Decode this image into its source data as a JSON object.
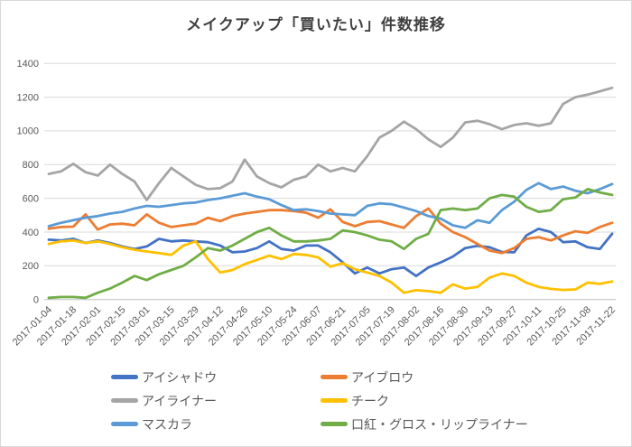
{
  "window": {
    "background": "#ffffff",
    "border_color": "#d9d9d9"
  },
  "chart_data": {
    "type": "line",
    "title": "メイクアップ「買いたい」件数推移",
    "title_color": "#404040",
    "axis_text_color": "#595959",
    "gridline_color": "#d9d9d9",
    "axis_line_color": "#bfbfbf",
    "grid": true,
    "legend_position": "bottom",
    "xlabel": "",
    "ylabel": "",
    "ylim": [
      0,
      1400
    ],
    "y_ticks": [
      0,
      200,
      400,
      600,
      800,
      1000,
      1200,
      1400
    ],
    "x": [
      "2017-01-04",
      "2017-01-11",
      "2017-01-18",
      "2017-01-25",
      "2017-02-01",
      "2017-02-08",
      "2017-02-15",
      "2017-02-22",
      "2017-03-01",
      "2017-03-08",
      "2017-03-15",
      "2017-03-22",
      "2017-03-29",
      "2017-04-05",
      "2017-04-12",
      "2017-04-19",
      "2017-04-26",
      "2017-05-03",
      "2017-05-10",
      "2017-05-17",
      "2017-05-24",
      "2017-05-31",
      "2017-06-07",
      "2017-06-14",
      "2017-06-21",
      "2017-06-28",
      "2017-07-05",
      "2017-07-12",
      "2017-07-19",
      "2017-07-26",
      "2017-08-02",
      "2017-08-09",
      "2017-08-16",
      "2017-08-23",
      "2017-08-30",
      "2017-09-06",
      "2017-09-13",
      "2017-09-20",
      "2017-09-27",
      "2017-10-04",
      "2017-10-11",
      "2017-10-18",
      "2017-10-25",
      "2017-11-01",
      "2017-11-08",
      "2017-11-15",
      "2017-11-22"
    ],
    "x_tick_labels": [
      "2017-01-04",
      "2017-01-18",
      "2017-02-01",
      "2017-02-15",
      "2017-03-01",
      "2017-03-15",
      "2017-03-29",
      "2017-04-12",
      "2017-04-26",
      "2017-05-10",
      "2017-05-24",
      "2017-06-07",
      "2017-06-21",
      "2017-07-05",
      "2017-07-19",
      "2017-08-02",
      "2017-08-16",
      "2017-08-30",
      "2017-09-13",
      "2017-09-27",
      "2017-10-11",
      "2017-10-25",
      "2017-11-08",
      "2017-11-22"
    ],
    "series": [
      {
        "key": "eyeshadow",
        "name": "アイシャドウ",
        "color": "#4472C4",
        "values": [
          355,
          350,
          360,
          335,
          350,
          335,
          315,
          300,
          315,
          360,
          345,
          350,
          345,
          340,
          320,
          280,
          285,
          305,
          345,
          300,
          290,
          320,
          320,
          280,
          220,
          155,
          190,
          155,
          180,
          190,
          140,
          190,
          220,
          255,
          305,
          318,
          310,
          282,
          280,
          380,
          420,
          400,
          340,
          345,
          310,
          300,
          390
        ]
      },
      {
        "key": "eyebrow",
        "name": "アイブロウ",
        "color": "#ED7D31",
        "values": [
          420,
          430,
          432,
          505,
          415,
          445,
          450,
          440,
          505,
          455,
          430,
          440,
          450,
          485,
          465,
          495,
          510,
          520,
          530,
          530,
          525,
          515,
          485,
          535,
          460,
          435,
          460,
          465,
          445,
          425,
          495,
          540,
          450,
          400,
          370,
          330,
          290,
          275,
          305,
          360,
          370,
          350,
          380,
          405,
          395,
          430,
          455
        ]
      },
      {
        "key": "eyeliner",
        "name": "アイライナー",
        "color": "#A5A5A5",
        "values": [
          745,
          760,
          805,
          755,
          735,
          800,
          745,
          700,
          590,
          690,
          780,
          730,
          680,
          655,
          660,
          700,
          830,
          730,
          690,
          665,
          710,
          730,
          800,
          760,
          780,
          760,
          850,
          960,
          1000,
          1055,
          1010,
          950,
          905,
          960,
          1050,
          1060,
          1040,
          1010,
          1035,
          1045,
          1030,
          1045,
          1160,
          1200,
          1215,
          1235,
          1255
        ]
      },
      {
        "key": "cheek",
        "name": "チーク",
        "color": "#FFC000",
        "values": [
          330,
          345,
          350,
          335,
          345,
          330,
          310,
          295,
          285,
          275,
          265,
          320,
          345,
          240,
          160,
          175,
          210,
          235,
          260,
          240,
          270,
          265,
          250,
          195,
          215,
          180,
          160,
          140,
          100,
          40,
          55,
          50,
          40,
          90,
          65,
          75,
          130,
          155,
          140,
          100,
          75,
          63,
          57,
          60,
          100,
          93,
          107
        ]
      },
      {
        "key": "mascara",
        "name": "マスカラ",
        "color": "#5B9BD5",
        "values": [
          435,
          455,
          470,
          485,
          495,
          510,
          520,
          540,
          555,
          550,
          560,
          570,
          575,
          590,
          600,
          615,
          630,
          610,
          595,
          560,
          530,
          535,
          525,
          510,
          505,
          500,
          555,
          570,
          565,
          545,
          525,
          495,
          480,
          440,
          425,
          470,
          455,
          530,
          580,
          650,
          690,
          655,
          670,
          645,
          630,
          655,
          685
        ]
      },
      {
        "key": "lipstick-gloss-lipliner",
        "name": "口紅・グロス・リップライナー",
        "color": "#70AD47",
        "values": [
          10,
          15,
          15,
          10,
          40,
          65,
          100,
          140,
          115,
          150,
          175,
          200,
          250,
          305,
          290,
          320,
          360,
          400,
          425,
          380,
          345,
          345,
          350,
          360,
          410,
          400,
          380,
          355,
          345,
          300,
          360,
          390,
          530,
          540,
          530,
          540,
          600,
          620,
          610,
          550,
          520,
          530,
          595,
          605,
          655,
          635,
          620
        ]
      }
    ]
  }
}
